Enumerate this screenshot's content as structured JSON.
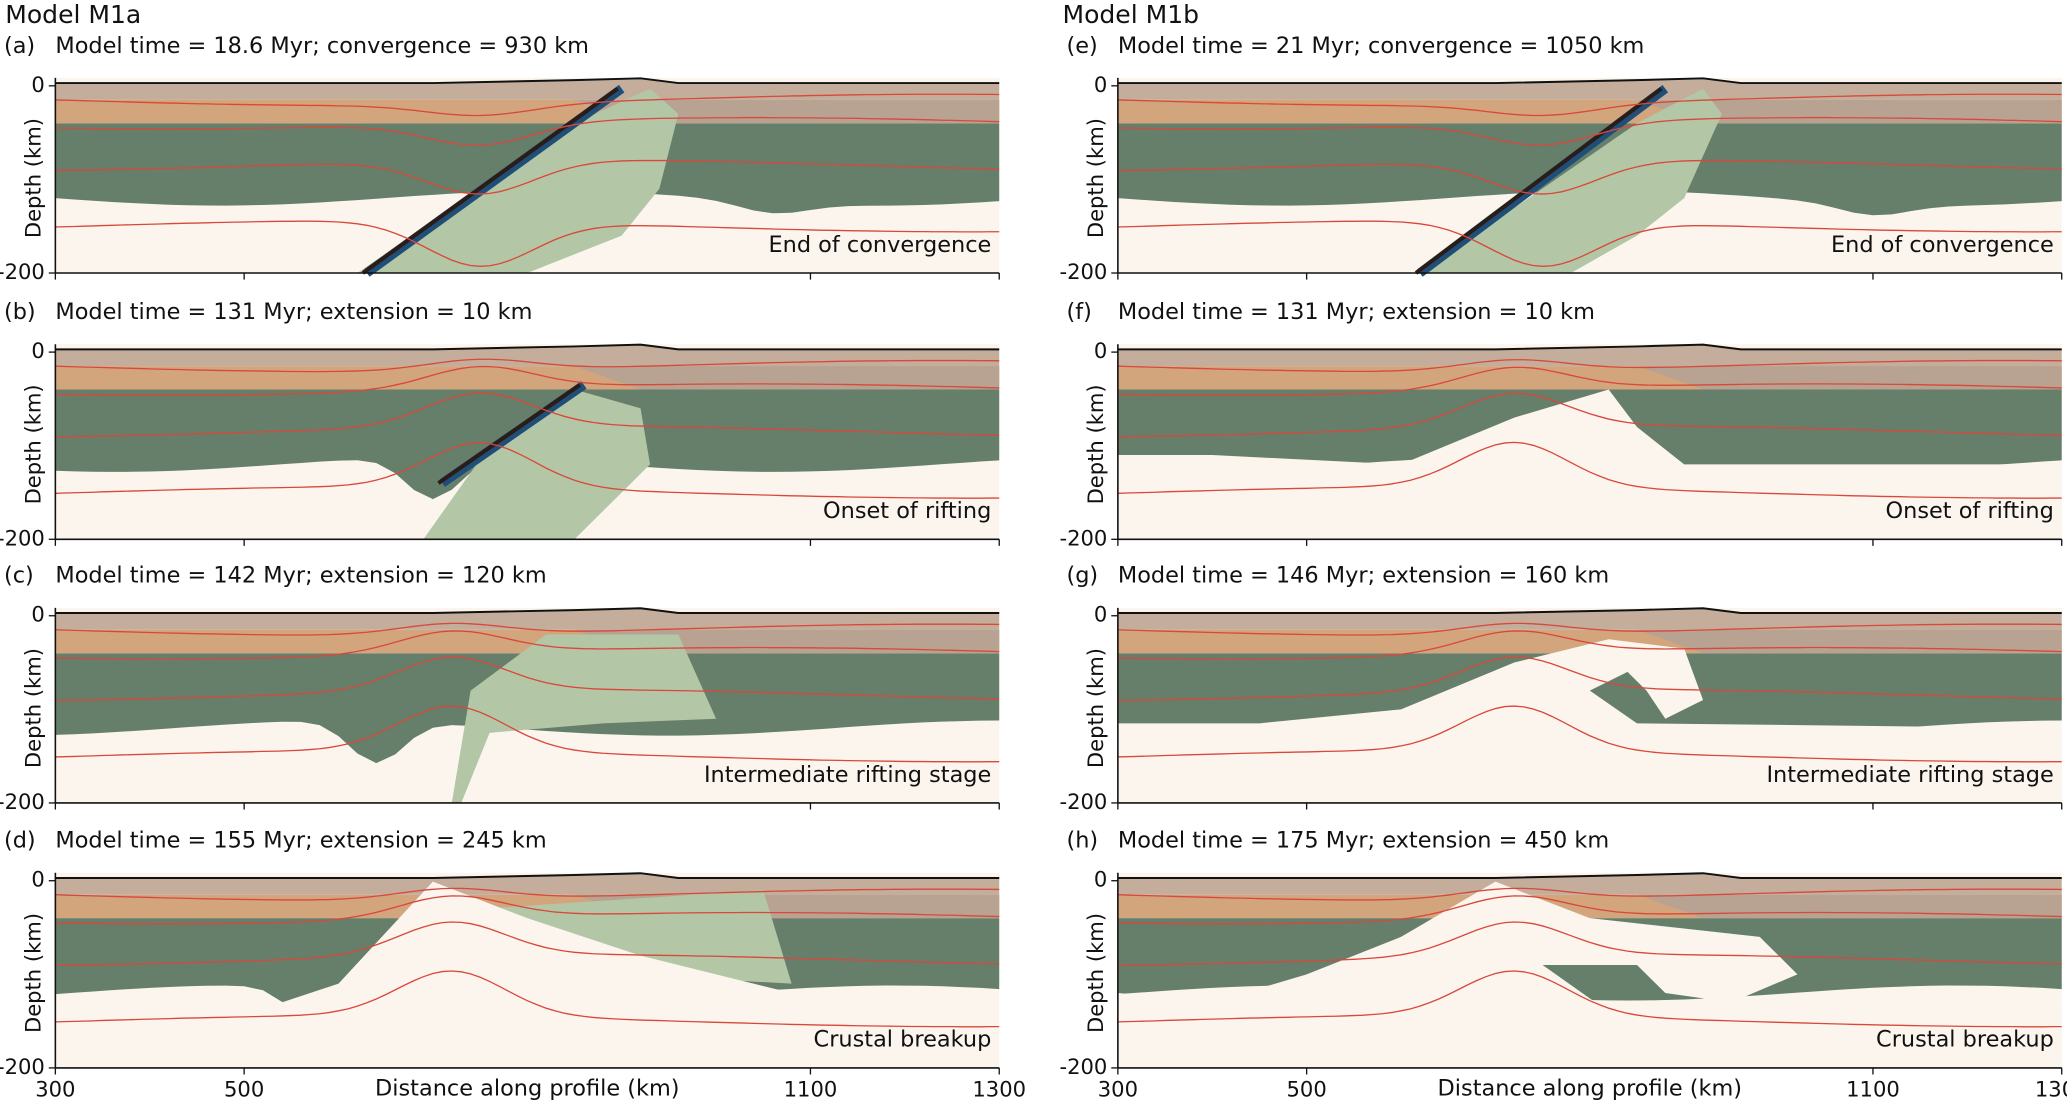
{
  "figure": {
    "columns": [
      {
        "title": "Model M1a",
        "panels": [
          {
            "label": "(a)",
            "caption": "Model time = 18.6 Myr; convergence = 930 km",
            "stage": "End of convergence"
          },
          {
            "label": "(b)",
            "caption": "Model time = 131 Myr; extension = 10 km",
            "stage": "Onset of rifting"
          },
          {
            "label": "(c)",
            "caption": "Model time = 142 Myr; extension = 120 km",
            "stage": "Intermediate rifting stage"
          },
          {
            "label": "(d)",
            "caption": "Model time = 155 Myr; extension = 245 km",
            "stage": "Crustal breakup"
          }
        ]
      },
      {
        "title": "Model M1b",
        "panels": [
          {
            "label": "(e)",
            "caption": "Model time = 21 Myr; convergence = 1050 km",
            "stage": "End of convergence"
          },
          {
            "label": "(f)",
            "caption": "Model time = 131 Myr; extension = 10 km",
            "stage": "Onset of rifting"
          },
          {
            "label": "(g)",
            "caption": "Model time = 146 Myr; extension = 160 km",
            "stage": "Intermediate rifting stage"
          },
          {
            "label": "(h)",
            "caption": "Model time = 175 Myr; extension = 450 km",
            "stage": "Crustal breakup"
          }
        ]
      }
    ],
    "axes": {
      "y_label": "Depth (km)",
      "x_label": "Distance along profile (km)",
      "ylim": [
        -200,
        0
      ],
      "yticks": [
        0,
        -200
      ],
      "xlim": [
        300,
        1300
      ],
      "xticks": [
        300,
        500,
        1100,
        1300
      ]
    }
  }
}
